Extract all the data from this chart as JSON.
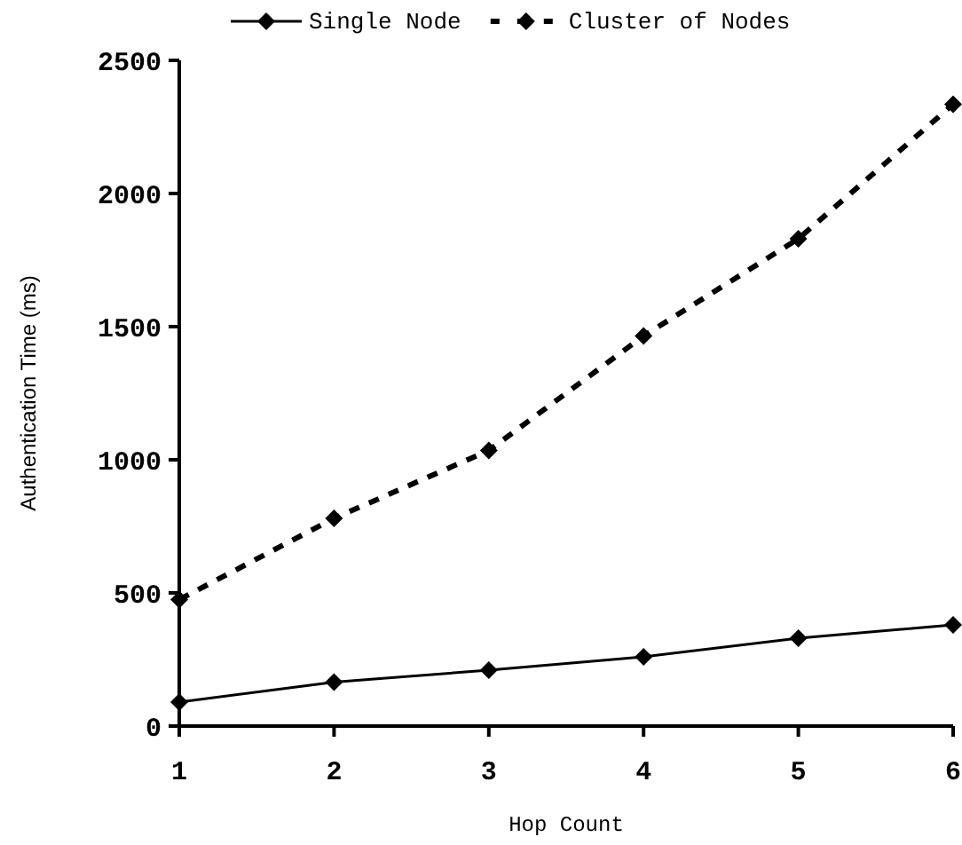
{
  "chart_data": {
    "type": "line",
    "xlabel": "Hop Count",
    "ylabel": "Authentication Time (ms)",
    "x": [
      1,
      2,
      3,
      4,
      5,
      6
    ],
    "xlim": [
      1,
      6
    ],
    "xticks": [
      1,
      2,
      3,
      4,
      5,
      6
    ],
    "ylim": [
      0,
      2500
    ],
    "yticks": [
      0,
      500,
      1000,
      1500,
      2000,
      2500
    ],
    "grid": false,
    "legend": "top",
    "marker": "diamond",
    "series": [
      {
        "name": "Single Node",
        "color": "#000000",
        "line_style": "solid",
        "values": [
          90,
          165,
          210,
          260,
          330,
          380
        ]
      },
      {
        "name": "Cluster of Nodes",
        "color": "#000000",
        "line_style": "dashed",
        "values": [
          475,
          780,
          1035,
          1465,
          1830,
          2335
        ]
      }
    ]
  }
}
